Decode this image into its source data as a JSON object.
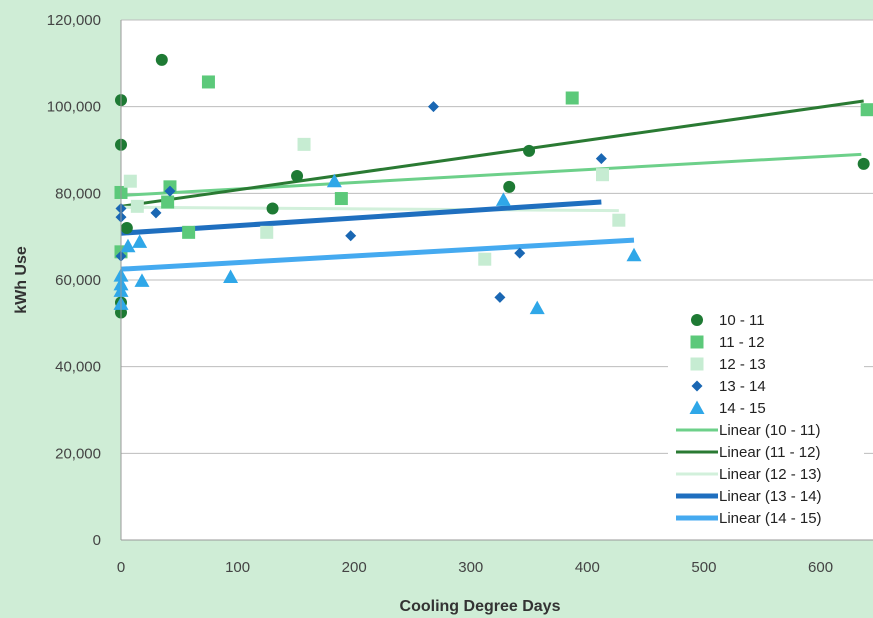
{
  "chart_data": {
    "type": "scatter",
    "xlabel": "Cooling Degree Days",
    "ylabel": "kWh Use",
    "xlim": [
      0,
      645
    ],
    "ylim": [
      0,
      120000
    ],
    "xticks": [
      0,
      100,
      200,
      300,
      400,
      500,
      600
    ],
    "yticks": [
      0,
      20000,
      40000,
      60000,
      80000,
      100000,
      120000
    ],
    "xtick_labels": [
      "0",
      "100",
      "200",
      "300",
      "400",
      "500",
      "600"
    ],
    "ytick_labels": [
      "0",
      "20,000",
      "40,000",
      "60,000",
      "80,000",
      "100,000",
      "120,000"
    ],
    "grid": "horizontal",
    "legend_position": "right",
    "series": [
      {
        "name": "10 - 11",
        "marker": "circle",
        "color": "#1e7a34",
        "points": [
          [
            0,
            101500
          ],
          [
            0,
            91200
          ],
          [
            0,
            54800
          ],
          [
            0,
            52500
          ],
          [
            5,
            72000
          ],
          [
            35,
            110800
          ],
          [
            130,
            76500
          ],
          [
            151,
            84000
          ],
          [
            333,
            81500
          ],
          [
            350,
            89800
          ],
          [
            637,
            86800
          ]
        ]
      },
      {
        "name": "11 - 12",
        "marker": "square",
        "color": "#5cc97a",
        "points": [
          [
            0,
            80200
          ],
          [
            0,
            66500
          ],
          [
            40,
            78000
          ],
          [
            42,
            81500
          ],
          [
            58,
            71000
          ],
          [
            75,
            105700
          ],
          [
            189,
            78800
          ],
          [
            387,
            102000
          ],
          [
            640,
            99300
          ]
        ]
      },
      {
        "name": "12 - 13",
        "marker": "square",
        "color": "#c6ecd2",
        "points": [
          [
            8,
            82800
          ],
          [
            14,
            77000
          ],
          [
            125,
            71000
          ],
          [
            157,
            91300
          ],
          [
            312,
            64800
          ],
          [
            413,
            84300
          ],
          [
            427,
            73800
          ]
        ]
      },
      {
        "name": "13 - 14",
        "marker": "diamond",
        "color": "#1a67b3",
        "points": [
          [
            0,
            76500
          ],
          [
            0,
            74500
          ],
          [
            0,
            65500
          ],
          [
            30,
            75500
          ],
          [
            42,
            80500
          ],
          [
            197,
            70200
          ],
          [
            268,
            100000
          ],
          [
            325,
            56000
          ],
          [
            342,
            66200
          ],
          [
            412,
            88000
          ]
        ]
      },
      {
        "name": "14 - 15",
        "marker": "triangle",
        "color": "#2fa7e8",
        "points": [
          [
            0,
            61000
          ],
          [
            0,
            59000
          ],
          [
            0,
            57500
          ],
          [
            0,
            54500
          ],
          [
            6,
            67800
          ],
          [
            16,
            68800
          ],
          [
            18,
            59800
          ],
          [
            94,
            60700
          ],
          [
            183,
            82800
          ],
          [
            328,
            78500
          ],
          [
            357,
            53500
          ],
          [
            440,
            65700
          ]
        ]
      }
    ],
    "trendlines": [
      {
        "name": "Linear (10 - 11)",
        "color": "#6dd08a",
        "width": 3,
        "x": [
          0,
          635
        ],
        "y": [
          79500,
          89000
        ]
      },
      {
        "name": "Linear (11 - 12)",
        "color": "#2a7a33",
        "width": 3,
        "x": [
          0,
          637
        ],
        "y": [
          77000,
          101300
        ]
      },
      {
        "name": "Linear (12 - 13)",
        "color": "#d2f0db",
        "width": 3,
        "x": [
          0,
          427
        ],
        "y": [
          76800,
          76000
        ]
      },
      {
        "name": "Linear (13 - 14)",
        "color": "#1f6fbf",
        "width": 5,
        "x": [
          0,
          412
        ],
        "y": [
          70800,
          78000
        ]
      },
      {
        "name": "Linear (14 - 15)",
        "color": "#45aaf0",
        "width": 5,
        "x": [
          0,
          440
        ],
        "y": [
          62500,
          69200
        ]
      }
    ]
  }
}
